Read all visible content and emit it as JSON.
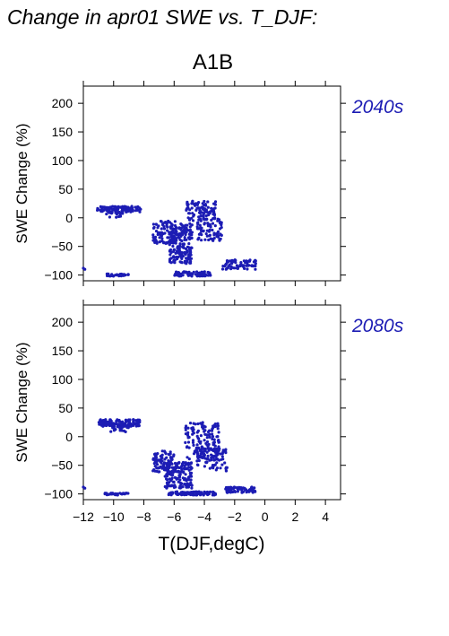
{
  "page": {
    "title": "Change in apr01 SWE vs. T_DJF:",
    "scenario": "A1B",
    "xlabel": "T(DJF,degC)"
  },
  "colors": {
    "points": "#1c1cb4",
    "axis": "#000000",
    "period_label": "#1c1cb4"
  },
  "chart_data": [
    {
      "type": "scatter",
      "period_label": "2040s",
      "ylabel": "SWE Change (%)",
      "xlim": [
        -12,
        5
      ],
      "ylim": [
        -110,
        230
      ],
      "xticks": [
        -12,
        -10,
        -8,
        -6,
        -4,
        -2,
        0,
        2,
        4
      ],
      "yticks": [
        -100,
        -50,
        0,
        50,
        100,
        150,
        200
      ],
      "grid": false,
      "clusters": [
        {
          "x_range": [
            -11.1,
            -8.2
          ],
          "y_range": [
            10,
            20
          ],
          "n": 110
        },
        {
          "x_range": [
            -10.5,
            -9.3
          ],
          "y_range": [
            0,
            10
          ],
          "n": 20
        },
        {
          "x_range": [
            -10.5,
            -9.0
          ],
          "y_range": [
            -102,
            -98
          ],
          "n": 35
        },
        {
          "x_range": [
            -7.4,
            -5.8
          ],
          "y_range": [
            -45,
            -5
          ],
          "n": 90
        },
        {
          "x_range": [
            -6.3,
            -4.8
          ],
          "y_range": [
            -80,
            -10
          ],
          "n": 200
        },
        {
          "x_range": [
            -5.2,
            -3.2
          ],
          "y_range": [
            -5,
            30
          ],
          "n": 90
        },
        {
          "x_range": [
            -4.5,
            -2.8
          ],
          "y_range": [
            -40,
            0
          ],
          "n": 80
        },
        {
          "x_range": [
            -6.0,
            -3.6
          ],
          "y_range": [
            -102,
            -94
          ],
          "n": 80
        },
        {
          "x_range": [
            -2.8,
            -0.6
          ],
          "y_range": [
            -90,
            -72
          ],
          "n": 70
        }
      ],
      "points": [
        [
          -12.0,
          -88
        ],
        [
          -11.9,
          -90
        ]
      ]
    },
    {
      "type": "scatter",
      "period_label": "2080s",
      "ylabel": "SWE Change (%)",
      "xlim": [
        -12,
        5
      ],
      "ylim": [
        -110,
        230
      ],
      "xticks": [
        -12,
        -10,
        -8,
        -6,
        -4,
        -2,
        0,
        2,
        4
      ],
      "yticks": [
        -100,
        -50,
        0,
        50,
        100,
        150,
        200
      ],
      "grid": false,
      "clusters": [
        {
          "x_range": [
            -11.0,
            -8.2
          ],
          "y_range": [
            18,
            30
          ],
          "n": 120
        },
        {
          "x_range": [
            -10.2,
            -9.0
          ],
          "y_range": [
            8,
            18
          ],
          "n": 20
        },
        {
          "x_range": [
            -10.6,
            -9.0
          ],
          "y_range": [
            -102,
            -98
          ],
          "n": 30
        },
        {
          "x_range": [
            -7.4,
            -6.0
          ],
          "y_range": [
            -65,
            -25
          ],
          "n": 90
        },
        {
          "x_range": [
            -6.6,
            -4.8
          ],
          "y_range": [
            -90,
            -45
          ],
          "n": 150
        },
        {
          "x_range": [
            -5.3,
            -3.0
          ],
          "y_range": [
            -45,
            25
          ],
          "n": 150
        },
        {
          "x_range": [
            -4.5,
            -2.5
          ],
          "y_range": [
            -60,
            -20
          ],
          "n": 70
        },
        {
          "x_range": [
            -6.4,
            -3.2
          ],
          "y_range": [
            -102,
            -96
          ],
          "n": 100
        },
        {
          "x_range": [
            -2.6,
            -0.6
          ],
          "y_range": [
            -98,
            -88
          ],
          "n": 70
        }
      ],
      "points": [
        [
          -12.0,
          -88
        ],
        [
          -11.9,
          -90
        ]
      ]
    }
  ]
}
